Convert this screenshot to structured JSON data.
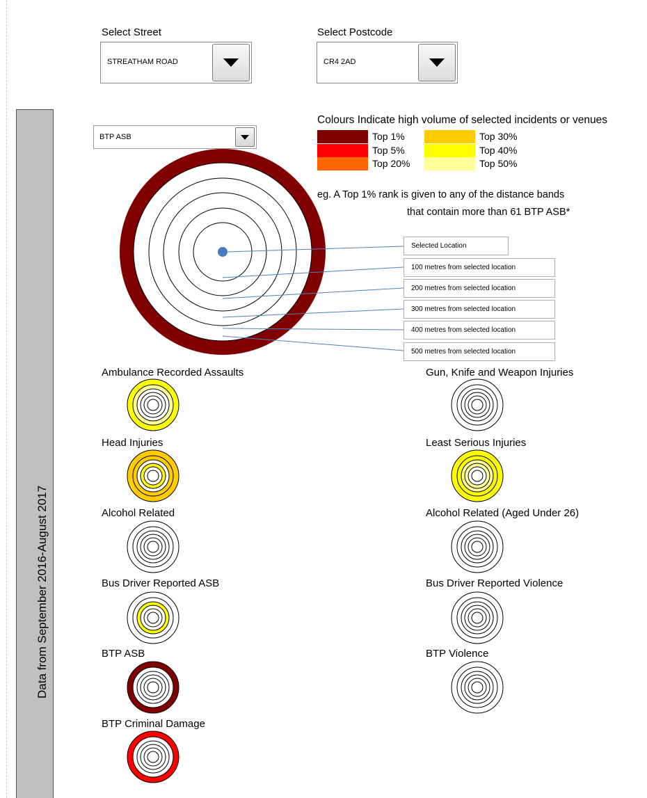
{
  "street": {
    "label": "Select Street",
    "value": "STREATHAM ROAD"
  },
  "postcode": {
    "label": "Select Postcode",
    "value": "CR4 2AD"
  },
  "sidebar": {
    "text": "Data from September 2016-August 2017"
  },
  "incident_select": {
    "value": "BTP ASB"
  },
  "legend": {
    "title": "Colours Indicate high volume of selected incidents or venues",
    "items": [
      {
        "label": "Top 1%",
        "color": "#800000"
      },
      {
        "label": "Top 5%",
        "color": "#ff0000"
      },
      {
        "label": "Top 20%",
        "color": "#ff6600"
      },
      {
        "label": "Top 30%",
        "color": "#ffcc00"
      },
      {
        "label": "Top 40%",
        "color": "#ffff00"
      },
      {
        "label": "Top 50%",
        "color": "#ffff99"
      }
    ],
    "note_line1": "eg. A Top 1% rank is given to any of the distance bands",
    "note_line2": "that contain more than 61 BTP ASB*"
  },
  "main_diagram": {
    "band_colors": [
      "#ffffff",
      "#ffffff",
      "#ffffff",
      "#ffffff",
      "#ffffff",
      "#800000"
    ],
    "labels": [
      "Selected Location",
      "100 metres from selected location",
      "200 metres from selected location",
      "300 metres from selected location",
      "400 metres from selected location",
      "500 metres from selected location"
    ]
  },
  "categories": [
    {
      "name": "Ambulance Recorded Assaults",
      "bands": [
        "#ffffff",
        "#ffffff",
        "#ffffff",
        "#ffffff",
        "#ffff99",
        "#ffff00"
      ]
    },
    {
      "name": "Gun, Knife and Weapon Injuries",
      "bands": [
        "#ffffff",
        "#ffffff",
        "#ffffff",
        "#ffffff",
        "#ffffff",
        "#ffffff"
      ]
    },
    {
      "name": "Head Injuries",
      "bands": [
        "#ffffff",
        "#ffffff",
        "#ffff00",
        "#ffffff",
        "#ffcc00",
        "#ffcc00"
      ]
    },
    {
      "name": "Least Serious Injuries",
      "bands": [
        "#ffffff",
        "#ffffff",
        "#ffff99",
        "#ffff99",
        "#ffff00",
        "#ffff00"
      ]
    },
    {
      "name": "Alcohol Related",
      "bands": [
        "#ffffff",
        "#ffffff",
        "#ffffff",
        "#ffffff",
        "#ffffff",
        "#ffffff"
      ]
    },
    {
      "name": "Alcohol Related (Aged Under 26)",
      "bands": [
        "#ffffff",
        "#ffffff",
        "#ffffff",
        "#ffffff",
        "#ffffff",
        "#ffffff"
      ]
    },
    {
      "name": "Bus Driver Reported ASB",
      "bands": [
        "#ffffff",
        "#ffffff",
        "#ffffff",
        "#ffff00",
        "#ffffff",
        "#ffffff"
      ]
    },
    {
      "name": "Bus Driver Reported Violence",
      "bands": [
        "#ffffff",
        "#ffffff",
        "#ffffff",
        "#ffffff",
        "#ffffff",
        "#ffffff"
      ]
    },
    {
      "name": "BTP ASB",
      "bands": [
        "#ffffff",
        "#ffffff",
        "#ffffff",
        "#ffffff",
        "#ffffff",
        "#800000"
      ]
    },
    {
      "name": "BTP Violence",
      "bands": [
        "#ffffff",
        "#ffffff",
        "#ffffff",
        "#ffffff",
        "#ffffff",
        "#ffffff"
      ]
    },
    {
      "name": "BTP Criminal Damage",
      "bands": [
        "#ffffff",
        "#ffffff",
        "#ffffff",
        "#ffffff",
        "#ffffff",
        "#ff0000"
      ]
    }
  ]
}
